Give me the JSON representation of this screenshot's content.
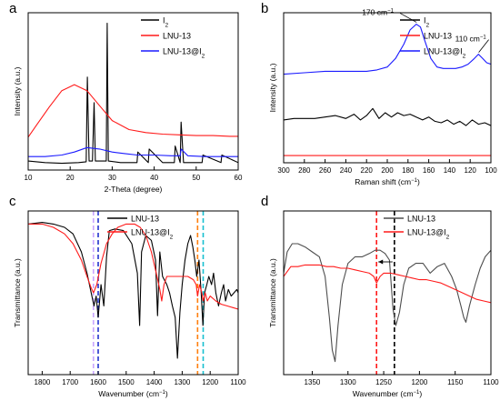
{
  "colors": {
    "black": "#000000",
    "red": "#ff1a1a",
    "blue": "#1a1aff",
    "gray": "#4d4d4d",
    "violet": "#c9a3ff",
    "dblue": "#2233cc",
    "orange": "#ff7f0e",
    "teal": "#17bfd0"
  },
  "chart_data": [
    {
      "panel_letter": "a",
      "type": "line",
      "xlabel": "2-Theta (degree)",
      "ylabel": "Intensity (a.u.)",
      "xlim": [
        10,
        60
      ],
      "x_ticks": [
        "10",
        "20",
        "30",
        "40",
        "50",
        "60"
      ],
      "legend": {
        "position": "top-right",
        "entries": [
          "I",
          "LNU-13",
          "LNU-13@I"
        ],
        "subscript": [
          "2",
          "",
          "2"
        ]
      },
      "series": [
        {
          "name": "I2",
          "color": "black",
          "x": [
            10,
            14,
            18,
            22,
            23.8,
            24.1,
            24.5,
            25.3,
            25.7,
            26,
            28.6,
            28.8,
            29.1,
            32,
            35.9,
            36.1,
            38.6,
            38.8,
            42,
            44.8,
            45,
            46.2,
            46.4,
            47,
            51.4,
            51.6,
            55.9,
            56.1,
            60
          ],
          "y": [
            0.06,
            0.05,
            0.045,
            0.05,
            0.055,
            0.62,
            0.06,
            0.06,
            0.45,
            0.06,
            0.06,
            0.98,
            0.06,
            0.05,
            0.05,
            0.12,
            0.05,
            0.14,
            0.05,
            0.05,
            0.16,
            0.05,
            0.32,
            0.05,
            0.05,
            0.1,
            0.05,
            0.1,
            0.05
          ]
        },
        {
          "name": "LNU-13",
          "color": "red",
          "x": [
            10,
            12,
            15,
            18,
            21,
            24,
            27,
            30,
            34,
            38,
            42,
            46,
            50,
            54,
            58,
            60
          ],
          "y": [
            0.22,
            0.3,
            0.42,
            0.53,
            0.57,
            0.53,
            0.43,
            0.33,
            0.27,
            0.25,
            0.24,
            0.235,
            0.23,
            0.23,
            0.225,
            0.225
          ]
        },
        {
          "name": "LNU-13@I2",
          "color": "blue",
          "x": [
            10,
            14,
            18,
            21,
            24,
            27,
            30,
            33,
            36,
            40,
            44,
            46.2,
            46.4,
            48,
            52,
            56,
            60
          ],
          "y": [
            0.09,
            0.09,
            0.1,
            0.12,
            0.15,
            0.14,
            0.12,
            0.11,
            0.1,
            0.1,
            0.095,
            0.095,
            0.14,
            0.095,
            0.09,
            0.09,
            0.09
          ]
        }
      ]
    },
    {
      "panel_letter": "b",
      "type": "line",
      "xlabel": "Raman shift (cm",
      "xlabel_sup": "−1",
      "xlabel_end": ")",
      "ylabel": "Intensity (a.u.)",
      "xlim": [
        300,
        100
      ],
      "x_ticks": [
        "300",
        "280",
        "260",
        "240",
        "220",
        "200",
        "180",
        "160",
        "140",
        "120",
        "100"
      ],
      "legend": {
        "position": "top-right",
        "entries": [
          "I",
          "LNU-13",
          "LNU-13@I"
        ],
        "subscript": [
          "2",
          "",
          "2"
        ]
      },
      "annotations": [
        {
          "text": "170 cm",
          "sup": "−1",
          "x": 170
        },
        {
          "text": "110 cm",
          "sup": "−1",
          "x": 110
        }
      ],
      "series": [
        {
          "name": "I2",
          "color": "black",
          "x": [
            300,
            290,
            280,
            270,
            260,
            250,
            240,
            232,
            226,
            220,
            214,
            208,
            202,
            196,
            190,
            184,
            178,
            172,
            166,
            160,
            154,
            148,
            142,
            136,
            130,
            124,
            118,
            112,
            106,
            100
          ],
          "y": [
            0.3,
            0.31,
            0.31,
            0.31,
            0.32,
            0.33,
            0.31,
            0.34,
            0.3,
            0.33,
            0.38,
            0.31,
            0.35,
            0.32,
            0.35,
            0.33,
            0.34,
            0.32,
            0.3,
            0.32,
            0.29,
            0.28,
            0.3,
            0.27,
            0.29,
            0.26,
            0.3,
            0.27,
            0.28,
            0.26
          ]
        },
        {
          "name": "LNU-13",
          "color": "red",
          "x": [
            300,
            250,
            200,
            150,
            100
          ],
          "y": [
            0.05,
            0.05,
            0.05,
            0.05,
            0.05
          ]
        },
        {
          "name": "LNU-13@I2",
          "color": "blue",
          "x": [
            300,
            280,
            260,
            240,
            220,
            210,
            200,
            192,
            184,
            178,
            172,
            168,
            164,
            158,
            152,
            146,
            140,
            134,
            128,
            122,
            116,
            112,
            108,
            104,
            100
          ],
          "y": [
            0.62,
            0.63,
            0.64,
            0.64,
            0.64,
            0.65,
            0.67,
            0.73,
            0.83,
            0.93,
            0.97,
            0.95,
            0.86,
            0.73,
            0.67,
            0.66,
            0.66,
            0.66,
            0.67,
            0.69,
            0.73,
            0.76,
            0.73,
            0.7,
            0.69
          ]
        }
      ]
    },
    {
      "panel_letter": "c",
      "type": "line",
      "xlabel": "Wavenumber (cm",
      "xlabel_sup": "−1",
      "xlabel_end": ")",
      "ylabel": "Transmittance (a.u.)",
      "xlim": [
        1850,
        1100
      ],
      "x_ticks": [
        "1800",
        "1700",
        "1600",
        "1500",
        "1400",
        "1300",
        "1200",
        "1100"
      ],
      "legend": {
        "position": "top-right",
        "entries": [
          "LNU-13",
          "LNU-13@I"
        ],
        "subscript": [
          "",
          "2"
        ]
      },
      "ref_lines": [
        {
          "x": 1617,
          "color": "violet"
        },
        {
          "x": 1600,
          "color": "dblue"
        },
        {
          "x": 1245,
          "color": "orange"
        },
        {
          "x": 1225,
          "color": "teal"
        }
      ],
      "series": [
        {
          "name": "LNU-13",
          "color": "black",
          "x": [
            1850,
            1800,
            1760,
            1720,
            1690,
            1660,
            1640,
            1625,
            1615,
            1607,
            1600,
            1590,
            1580,
            1570,
            1560,
            1540,
            1510,
            1480,
            1460,
            1452,
            1445,
            1430,
            1410,
            1395,
            1388,
            1380,
            1370,
            1355,
            1345,
            1335,
            1325,
            1317,
            1308,
            1300,
            1290,
            1280,
            1270,
            1262,
            1255,
            1248,
            1240,
            1232,
            1226,
            1220,
            1212,
            1205,
            1195,
            1188,
            1180,
            1170,
            1160,
            1152,
            1145,
            1135,
            1125,
            1115,
            1105,
            1100
          ],
          "y": [
            0.92,
            0.93,
            0.92,
            0.9,
            0.86,
            0.75,
            0.62,
            0.5,
            0.42,
            0.48,
            0.35,
            0.55,
            0.42,
            0.72,
            0.88,
            0.89,
            0.88,
            0.8,
            0.62,
            0.3,
            0.75,
            0.85,
            0.82,
            0.7,
            0.36,
            0.75,
            0.6,
            0.55,
            0.5,
            0.42,
            0.35,
            0.1,
            0.38,
            0.55,
            0.7,
            0.8,
            0.85,
            0.78,
            0.7,
            0.6,
            0.7,
            0.5,
            0.3,
            0.5,
            0.55,
            0.6,
            0.55,
            0.62,
            0.5,
            0.42,
            0.5,
            0.55,
            0.45,
            0.52,
            0.48,
            0.5,
            0.52,
            0.5
          ]
        },
        {
          "name": "LNU-13@I2",
          "color": "red",
          "x": [
            1850,
            1800,
            1760,
            1720,
            1690,
            1660,
            1640,
            1625,
            1617,
            1605,
            1590,
            1570,
            1550,
            1530,
            1500,
            1470,
            1450,
            1430,
            1410,
            1390,
            1380,
            1373,
            1365,
            1355,
            1340,
            1320,
            1300,
            1280,
            1260,
            1250,
            1245,
            1238,
            1230,
            1225,
            1218,
            1210,
            1200,
            1180,
            1160,
            1140,
            1120,
            1100
          ],
          "y": [
            0.92,
            0.92,
            0.9,
            0.86,
            0.8,
            0.7,
            0.6,
            0.53,
            0.5,
            0.55,
            0.68,
            0.8,
            0.86,
            0.9,
            0.92,
            0.92,
            0.9,
            0.85,
            0.75,
            0.6,
            0.52,
            0.45,
            0.55,
            0.6,
            0.6,
            0.6,
            0.6,
            0.6,
            0.58,
            0.55,
            0.48,
            0.55,
            0.5,
            0.45,
            0.5,
            0.45,
            0.48,
            0.45,
            0.43,
            0.42,
            0.41,
            0.4
          ]
        }
      ]
    },
    {
      "panel_letter": "d",
      "type": "line",
      "xlabel": "Wavenumber (cm",
      "xlabel_sup": "−1",
      "xlabel_end": ")",
      "ylabel": "Transmittance (a.u.)",
      "xlim": [
        1390,
        1100
      ],
      "x_ticks": [
        "1350",
        "1300",
        "1250",
        "1200",
        "1150",
        "1100"
      ],
      "legend": {
        "position": "top-right",
        "entries": [
          "LNU-13",
          "LNU-13@I"
        ],
        "subscript": [
          "",
          "2"
        ]
      },
      "ref_lines": [
        {
          "x": 1260,
          "color": "red"
        },
        {
          "x": 1235,
          "color": "black"
        }
      ],
      "arrow": {
        "from_x": 1235,
        "to_x": 1260
      },
      "series": [
        {
          "name": "LNU-13",
          "color": "gray",
          "x": [
            1390,
            1385,
            1378,
            1370,
            1360,
            1350,
            1340,
            1332,
            1326,
            1322,
            1318,
            1314,
            1308,
            1300,
            1290,
            1280,
            1270,
            1262,
            1255,
            1248,
            1242,
            1237,
            1233,
            1228,
            1222,
            1215,
            1205,
            1195,
            1185,
            1175,
            1165,
            1155,
            1148,
            1142,
            1138,
            1135,
            1130,
            1122,
            1115,
            1108,
            1100
          ],
          "y": [
            0.62,
            0.75,
            0.8,
            0.8,
            0.78,
            0.75,
            0.72,
            0.6,
            0.35,
            0.15,
            0.08,
            0.3,
            0.55,
            0.68,
            0.72,
            0.72,
            0.74,
            0.76,
            0.76,
            0.74,
            0.7,
            0.4,
            0.3,
            0.38,
            0.55,
            0.65,
            0.68,
            0.68,
            0.62,
            0.66,
            0.68,
            0.6,
            0.52,
            0.42,
            0.35,
            0.32,
            0.42,
            0.55,
            0.65,
            0.72,
            0.76
          ]
        },
        {
          "name": "LNU-13@I2",
          "color": "red",
          "x": [
            1390,
            1380,
            1370,
            1360,
            1350,
            1340,
            1330,
            1320,
            1310,
            1300,
            1290,
            1280,
            1270,
            1264,
            1260,
            1255,
            1250,
            1240,
            1230,
            1220,
            1210,
            1200,
            1190,
            1180,
            1170,
            1160,
            1150,
            1140,
            1130,
            1120,
            1110,
            1100
          ],
          "y": [
            0.6,
            0.66,
            0.66,
            0.67,
            0.67,
            0.67,
            0.66,
            0.66,
            0.65,
            0.65,
            0.64,
            0.63,
            0.62,
            0.6,
            0.56,
            0.6,
            0.62,
            0.62,
            0.61,
            0.6,
            0.59,
            0.58,
            0.58,
            0.57,
            0.56,
            0.54,
            0.52,
            0.5,
            0.48,
            0.46,
            0.45,
            0.44
          ]
        }
      ]
    }
  ]
}
